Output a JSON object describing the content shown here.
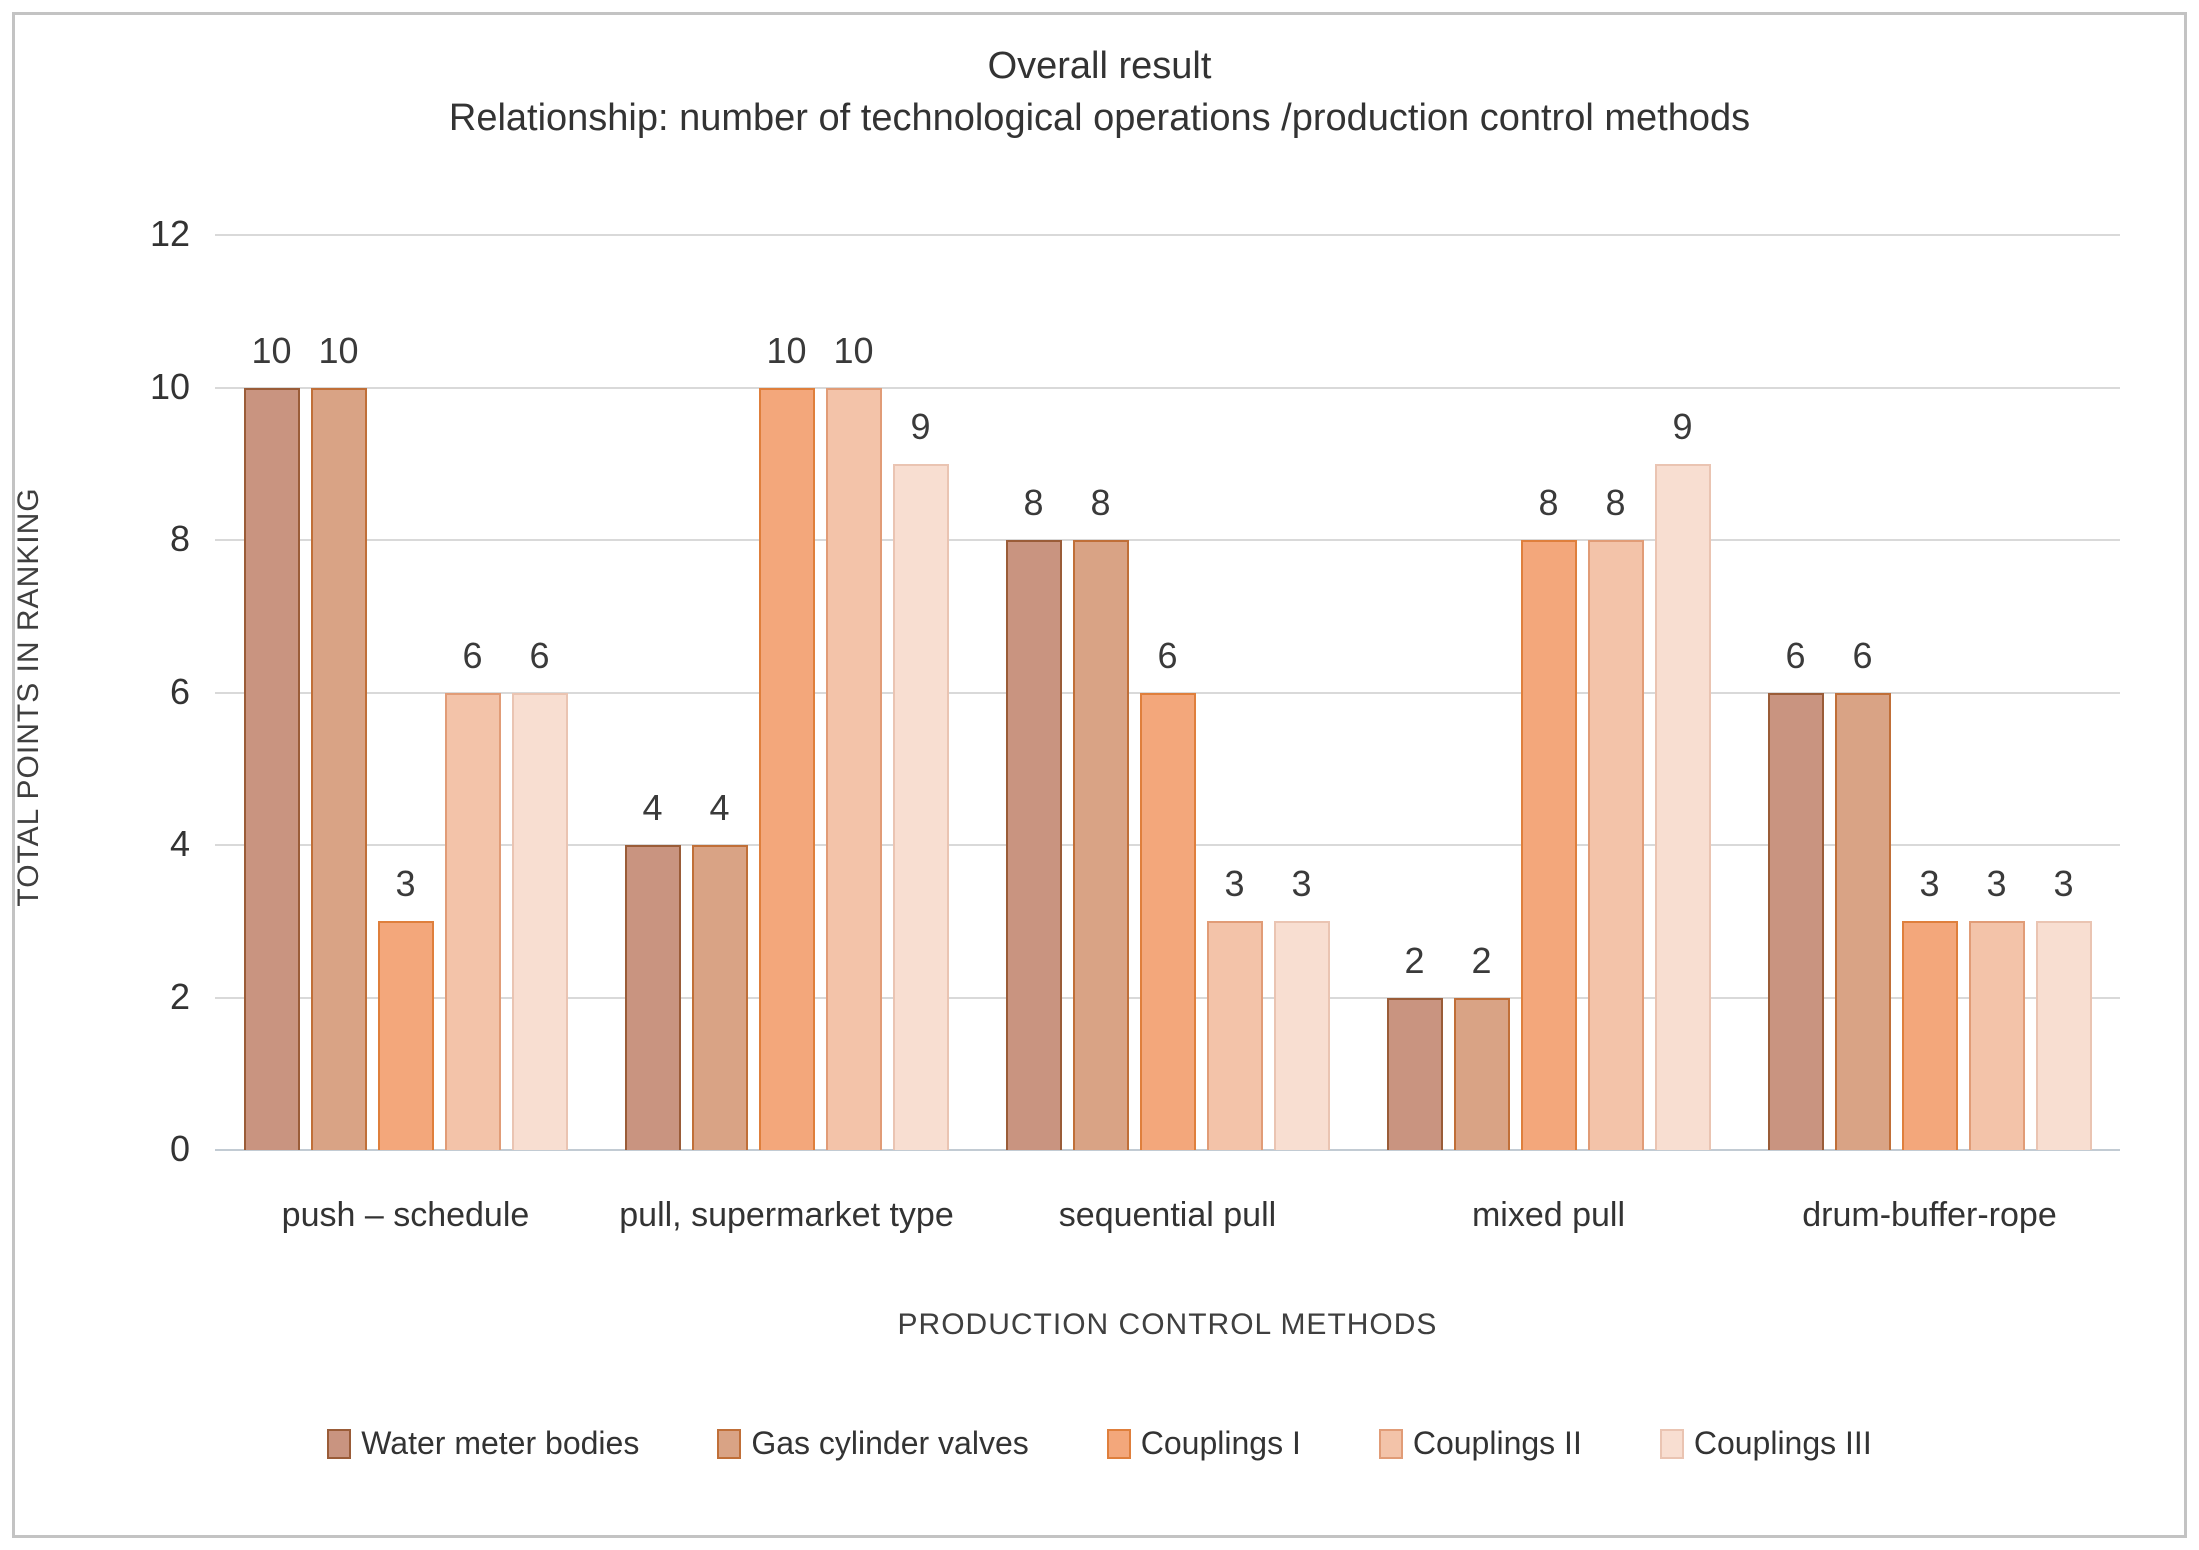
{
  "figure": {
    "title_line1": "Overall result",
    "title_line2": "Relationship: number of technological operations /production control methods"
  },
  "chart_data": {
    "type": "bar",
    "title": "Overall result",
    "subtitle": "Relationship: number of technological operations /production control methods",
    "categories": [
      "push – schedule",
      "pull, supermarket type",
      "sequential pull",
      "mixed pull",
      "drum-buffer-rope"
    ],
    "series": [
      {
        "name": "Water meter bodies",
        "values": [
          10,
          4,
          8,
          2,
          6
        ],
        "fill": "#c99480",
        "border": "#9a5c38"
      },
      {
        "name": "Gas cylinder valves",
        "values": [
          10,
          4,
          8,
          2,
          6
        ],
        "fill": "#d9a385",
        "border": "#c06f38"
      },
      {
        "name": "Couplings I",
        "values": [
          3,
          10,
          6,
          8,
          3
        ],
        "fill": "#f3a77b",
        "border": "#df7f3c"
      },
      {
        "name": "Couplings II",
        "values": [
          6,
          10,
          3,
          8,
          3
        ],
        "fill": "#f3c3a9",
        "border": "#e19c77"
      },
      {
        "name": "Couplings III",
        "values": [
          6,
          9,
          3,
          9,
          3
        ],
        "fill": "#f8ded1",
        "border": "#eac4b2"
      }
    ],
    "xlabel": "PRODUCTION CONTROL METHODS",
    "ylabel": "TOTAL POINTS IN RANKING",
    "ylim": [
      0,
      12
    ],
    "yticks": [
      0,
      2,
      4,
      6,
      8,
      10,
      12
    ],
    "grid": true,
    "data_labels": true,
    "legend_position": "bottom"
  },
  "colors": {
    "grid": "#d9d9d9",
    "baseline": "#c2cbd3",
    "frame_border": "#c3c3c3",
    "text": "#333333"
  }
}
